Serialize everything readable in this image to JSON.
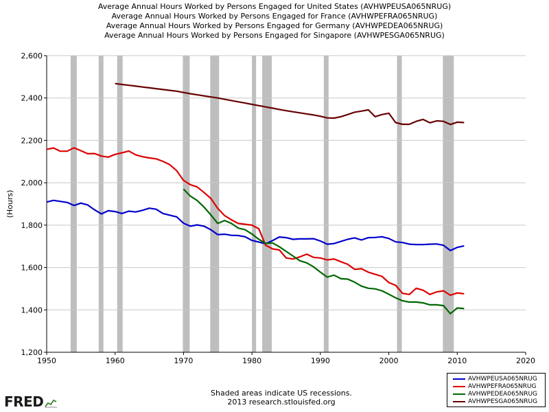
{
  "titles": [
    "Average Annual Hours Worked by Persons Engaged for United States (AVHWPEUSA065NRUG)",
    "Average Annual Hours Worked by Persons Engaged for France (AVHWPEFRA065NRUG)",
    "Average Annual Hours Worked by Persons Engaged for Germany (AVHWPEDEA065NRUG)",
    "Average Annual Hours Worked by Persons Engaged for Singapore (AVHWPESGA065NRUG)"
  ],
  "footer": {
    "note": "Shaded areas indicate US recessions.",
    "source": "2013 research.stlouisfed.org"
  },
  "logo": {
    "text": "FRED"
  },
  "chart_data": {
    "type": "line",
    "ylabel": "(Hours)",
    "xlabel": "",
    "xlim": [
      1950,
      2020
    ],
    "ylim": [
      1200,
      2600
    ],
    "x_ticks": [
      1950,
      1960,
      1970,
      1980,
      1990,
      2000,
      2010,
      2020
    ],
    "y_ticks": [
      1200,
      1400,
      1600,
      1800,
      2000,
      2200,
      2400,
      2600
    ],
    "y_tick_labels": [
      "1,200",
      "1,400",
      "1,600",
      "1,800",
      "2,000",
      "2,200",
      "2,400",
      "2,600"
    ],
    "grid": true,
    "legend_position": "bottom-right",
    "recessions": [
      [
        1953.5,
        1954.4
      ],
      [
        1957.6,
        1958.3
      ],
      [
        1960.3,
        1961.1
      ],
      [
        1969.9,
        1970.9
      ],
      [
        1973.9,
        1975.2
      ],
      [
        1980.0,
        1980.6
      ],
      [
        1981.5,
        1982.9
      ],
      [
        1990.5,
        1991.2
      ],
      [
        2001.2,
        2001.9
      ],
      [
        2007.9,
        2009.5
      ]
    ],
    "recession_color": "#bebebe",
    "series": [
      {
        "name": "AVHWPEUSA065NRUG",
        "color": "#0000cc",
        "x": [
          1950,
          1951,
          1952,
          1953,
          1954,
          1955,
          1956,
          1957,
          1958,
          1959,
          1960,
          1961,
          1962,
          1963,
          1964,
          1965,
          1966,
          1967,
          1968,
          1969,
          1970,
          1971,
          1972,
          1973,
          1974,
          1975,
          1976,
          1977,
          1978,
          1979,
          1980,
          1981,
          1982,
          1983,
          1984,
          1985,
          1986,
          1987,
          1988,
          1989,
          1990,
          1991,
          1992,
          1993,
          1994,
          1995,
          1996,
          1997,
          1998,
          1999,
          2000,
          2001,
          2002,
          2003,
          2004,
          2005,
          2006,
          2007,
          2008,
          2009,
          2010,
          2011
        ],
        "values": [
          1909,
          1917,
          1912,
          1907,
          1893,
          1904,
          1895,
          1872,
          1853,
          1868,
          1864,
          1855,
          1866,
          1862,
          1870,
          1880,
          1875,
          1855,
          1847,
          1839,
          1809,
          1795,
          1801,
          1795,
          1778,
          1755,
          1757,
          1752,
          1751,
          1745,
          1728,
          1720,
          1712,
          1727,
          1744,
          1741,
          1733,
          1735,
          1735,
          1736,
          1725,
          1710,
          1713,
          1723,
          1733,
          1740,
          1730,
          1741,
          1742,
          1745,
          1737,
          1721,
          1718,
          1710,
          1708,
          1708,
          1710,
          1711,
          1705,
          1680,
          1695,
          1702
        ]
      },
      {
        "name": "AVHWPEFRA065NRUG",
        "color": "#dd0000",
        "x": [
          1950,
          1951,
          1952,
          1953,
          1954,
          1955,
          1956,
          1957,
          1958,
          1959,
          1960,
          1961,
          1962,
          1963,
          1964,
          1965,
          1966,
          1967,
          1968,
          1969,
          1970,
          1971,
          1972,
          1973,
          1974,
          1975,
          1976,
          1977,
          1978,
          1979,
          1980,
          1981,
          1982,
          1983,
          1984,
          1985,
          1986,
          1987,
          1988,
          1989,
          1990,
          1991,
          1992,
          1993,
          1994,
          1995,
          1996,
          1997,
          1998,
          1999,
          2000,
          2001,
          2002,
          2003,
          2004,
          2005,
          2006,
          2007,
          2008,
          2009,
          2010,
          2011
        ],
        "values": [
          2158,
          2164,
          2149,
          2149,
          2165,
          2151,
          2137,
          2138,
          2126,
          2121,
          2134,
          2141,
          2150,
          2132,
          2123,
          2117,
          2113,
          2101,
          2085,
          2057,
          2011,
          1991,
          1980,
          1954,
          1926,
          1879,
          1845,
          1825,
          1808,
          1804,
          1800,
          1783,
          1705,
          1688,
          1683,
          1645,
          1640,
          1650,
          1663,
          1648,
          1645,
          1636,
          1640,
          1627,
          1615,
          1591,
          1594,
          1578,
          1568,
          1558,
          1529,
          1516,
          1478,
          1473,
          1502,
          1493,
          1473,
          1485,
          1490,
          1469,
          1480,
          1476
        ]
      },
      {
        "name": "AVHWPEDEA065NRUG",
        "color": "#006600",
        "x": [
          1970,
          1971,
          1972,
          1973,
          1974,
          1975,
          1976,
          1977,
          1978,
          1979,
          1980,
          1981,
          1982,
          1983,
          1984,
          1985,
          1986,
          1987,
          1988,
          1989,
          1990,
          1991,
          1992,
          1993,
          1994,
          1995,
          1996,
          1997,
          1998,
          1999,
          2000,
          2001,
          2002,
          2003,
          2004,
          2005,
          2006,
          2007,
          2008,
          2009,
          2010,
          2011
        ],
        "values": [
          1970,
          1937,
          1916,
          1885,
          1848,
          1808,
          1822,
          1808,
          1786,
          1778,
          1758,
          1733,
          1714,
          1716,
          1698,
          1676,
          1654,
          1632,
          1622,
          1603,
          1578,
          1555,
          1564,
          1547,
          1545,
          1531,
          1512,
          1502,
          1499,
          1490,
          1474,
          1457,
          1443,
          1437,
          1437,
          1433,
          1424,
          1424,
          1420,
          1382,
          1409,
          1406
        ]
      },
      {
        "name": "AVHWPESGA065NRUG",
        "color": "#660000",
        "x": [
          1960,
          1961,
          1962,
          1963,
          1964,
          1965,
          1966,
          1967,
          1968,
          1969,
          1970,
          1971,
          1972,
          1973,
          1974,
          1975,
          1976,
          1977,
          1978,
          1979,
          1980,
          1981,
          1982,
          1983,
          1984,
          1985,
          1986,
          1987,
          1988,
          1989,
          1990,
          1991,
          1992,
          1993,
          1994,
          1995,
          1996,
          1997,
          1998,
          1999,
          2000,
          2001,
          2002,
          2003,
          2004,
          2005,
          2006,
          2007,
          2008,
          2009,
          2010,
          2011
        ],
        "values": [
          2468,
          2464,
          2460,
          2456,
          2452,
          2448,
          2444,
          2440,
          2436,
          2432,
          2426,
          2420,
          2415,
          2410,
          2405,
          2400,
          2394,
          2388,
          2382,
          2376,
          2370,
          2364,
          2358,
          2352,
          2346,
          2340,
          2335,
          2330,
          2325,
          2320,
          2314,
          2306,
          2305,
          2312,
          2322,
          2333,
          2338,
          2344,
          2312,
          2322,
          2328,
          2284,
          2276,
          2276,
          2290,
          2299,
          2283,
          2292,
          2290,
          2275,
          2286,
          2284
        ]
      }
    ]
  }
}
